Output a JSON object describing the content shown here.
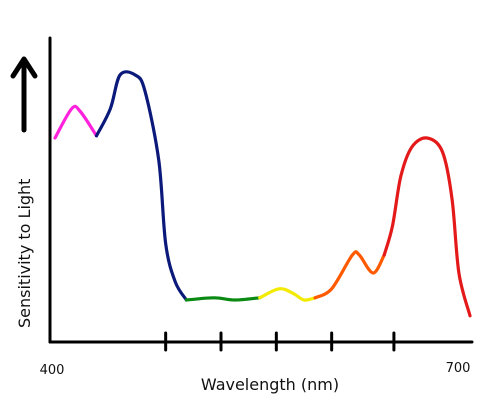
{
  "chart_data": {
    "type": "line",
    "title": "",
    "xlabel": "Wavelength (nm)",
    "ylabel": "Sensitivity to Light",
    "x_tick_labels": [
      "400",
      "700"
    ],
    "xlim": [
      400,
      700
    ],
    "grid": false,
    "axis_arrow": "up-arrow-icon",
    "tick_marks_nm": [
      480,
      520,
      560,
      600,
      645
    ],
    "series": [
      {
        "color": "#ff22dd",
        "points": [
          [
            400,
            0.72
          ],
          [
            412,
            0.85
          ],
          [
            418,
            0.84
          ],
          [
            430,
            0.73
          ]
        ]
      },
      {
        "color": "#0b1a7a",
        "points": [
          [
            430,
            0.73
          ],
          [
            440,
            0.85
          ],
          [
            447,
            1.0
          ],
          [
            458,
            1.0
          ],
          [
            465,
            0.93
          ],
          [
            475,
            0.62
          ],
          [
            480,
            0.25
          ],
          [
            487,
            0.08
          ],
          [
            495,
            0.0
          ]
        ]
      },
      {
        "color": "#0a8a12",
        "points": [
          [
            495,
            0.0
          ],
          [
            515,
            0.01
          ],
          [
            530,
            0.0
          ],
          [
            548,
            0.01
          ]
        ]
      },
      {
        "color": "#f2ea00",
        "points": [
          [
            548,
            0.01
          ],
          [
            562,
            0.05
          ],
          [
            572,
            0.03
          ],
          [
            580,
            0.0
          ],
          [
            588,
            0.01
          ]
        ]
      },
      {
        "color": "#ff5a00",
        "points": [
          [
            588,
            0.01
          ],
          [
            600,
            0.05
          ],
          [
            615,
            0.2
          ],
          [
            620,
            0.2
          ],
          [
            630,
            0.12
          ],
          [
            638,
            0.2
          ]
        ]
      },
      {
        "color": "#e41a1a",
        "points": [
          [
            638,
            0.2
          ],
          [
            644,
            0.33
          ],
          [
            650,
            0.55
          ],
          [
            658,
            0.68
          ],
          [
            669,
            0.72
          ],
          [
            680,
            0.66
          ],
          [
            687,
            0.45
          ],
          [
            692,
            0.12
          ],
          [
            700,
            -0.07
          ]
        ]
      }
    ]
  }
}
